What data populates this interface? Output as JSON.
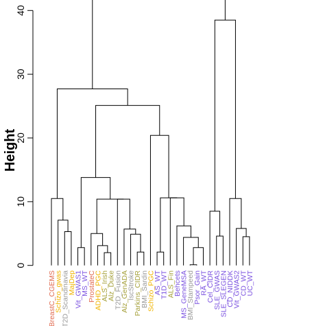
{
  "chart_data": {
    "type": "dendrogram",
    "title": "",
    "ylabel": "Height",
    "xlabel": "",
    "ylim": [
      0,
      43
    ],
    "yticks": [
      0,
      10,
      20,
      30,
      40
    ],
    "ytick_labels": [
      "0",
      "10",
      "20",
      "30",
      "40"
    ],
    "colors": {
      "red": "#e06a4f",
      "orange": "#f0b400",
      "gray": "#9a9a9a",
      "purple": "#7b52e0",
      "olive": "#a6a13c",
      "line": "#000000"
    },
    "leaves": [
      {
        "label": "BreastC_CGEMS",
        "color": "red"
      },
      {
        "label": "Schizo_gwas",
        "color": "orange"
      },
      {
        "label": "T2D_Scandinavia",
        "color": "gray"
      },
      {
        "label": "MajDep",
        "color": "orange"
      },
      {
        "label": "Vit_GWAS1",
        "color": "purple"
      },
      {
        "label": "MS_WT",
        "color": "purple"
      },
      {
        "label": "ProstateC",
        "color": "red"
      },
      {
        "label": "ADHD_PGC",
        "color": "orange"
      },
      {
        "label": "ALS_Irish",
        "color": "olive"
      },
      {
        "label": "Alz_Duke",
        "color": "olive"
      },
      {
        "label": "T2D_Fusion",
        "color": "gray"
      },
      {
        "label": "Alz_GenADA",
        "color": "olive"
      },
      {
        "label": "IscStroke",
        "color": "gray"
      },
      {
        "label": "Parkins_CIDR",
        "color": "olive"
      },
      {
        "label": "BMI_Sardin",
        "color": "gray"
      },
      {
        "label": "Schizo_PGC",
        "color": "orange"
      },
      {
        "label": "AS_WT",
        "color": "purple"
      },
      {
        "label": "T1D_WT",
        "color": "purple"
      },
      {
        "label": "ALS_Fin",
        "color": "olive"
      },
      {
        "label": "Behcets",
        "color": "purple"
      },
      {
        "label": "MS_GeneMSA",
        "color": "purple"
      },
      {
        "label": "BMI_Stampeed",
        "color": "gray"
      },
      {
        "label": "Psor_Gain",
        "color": "purple"
      },
      {
        "label": "RA_WT",
        "color": "purple"
      },
      {
        "label": "Cel_CIDR",
        "color": "purple"
      },
      {
        "label": "SLE_GWAS",
        "color": "purple"
      },
      {
        "label": "SLE_SLEGEN",
        "color": "purple"
      },
      {
        "label": "CD_NIDDK",
        "color": "purple"
      },
      {
        "label": "Vit_GWAS2",
        "color": "purple"
      },
      {
        "label": "CD_WT",
        "color": "purple"
      },
      {
        "label": "UC_WT",
        "color": "purple"
      }
    ],
    "merges": [
      {
        "name": "m1",
        "left": 2,
        "right": 3,
        "height": 5.3
      },
      {
        "name": "m2",
        "left": 1,
        "right": "m1",
        "height": 7.1
      },
      {
        "name": "m3",
        "left": 0,
        "right": "m2",
        "height": 10.5
      },
      {
        "name": "m4",
        "left": 4,
        "right": 5,
        "height": 2.8
      },
      {
        "name": "m5",
        "left": 8,
        "right": 9,
        "height": 2.0
      },
      {
        "name": "m6",
        "left": 7,
        "right": "m5",
        "height": 3.1
      },
      {
        "name": "m7",
        "left": 6,
        "right": "m6",
        "height": 5.0
      },
      {
        "name": "m8",
        "left": 13,
        "right": 14,
        "height": 2.1
      },
      {
        "name": "m9",
        "left": 12,
        "right": "m8",
        "height": 4.9
      },
      {
        "name": "m10",
        "left": 11,
        "right": "m9",
        "height": 5.7
      },
      {
        "name": "m11",
        "left": 10,
        "right": "m10",
        "height": 10.4
      },
      {
        "name": "m12",
        "left": "m7",
        "right": "m11",
        "height": 10.4
      },
      {
        "name": "m13",
        "left": "m4",
        "right": "m12",
        "height": 13.8
      },
      {
        "name": "m14",
        "left": 16,
        "right": 17,
        "height": 2.1
      },
      {
        "name": "m15",
        "left": 21,
        "right": 22,
        "height": 0.1
      },
      {
        "name": "m16",
        "left": "m15",
        "right": 23,
        "height": 2.8
      },
      {
        "name": "m17",
        "left": 20,
        "right": "m16",
        "height": 4.4
      },
      {
        "name": "m18",
        "left": 19,
        "right": "m17",
        "height": 6.2
      },
      {
        "name": "m19",
        "left": 18,
        "right": "m18",
        "height": 10.6
      },
      {
        "name": "m20",
        "left": "m14",
        "right": "m19",
        "height": 10.6
      },
      {
        "name": "m21",
        "left": 15,
        "right": "m20",
        "height": 20.4
      },
      {
        "name": "m22",
        "left": "m13",
        "right": "m21",
        "height": 25.1
      },
      {
        "name": "m23",
        "left": "m3",
        "right": "m22",
        "height": 27.7
      },
      {
        "name": "m24",
        "left": 25,
        "right": 26,
        "height": 4.6
      },
      {
        "name": "m25",
        "left": 24,
        "right": "m24",
        "height": 8.5
      },
      {
        "name": "m26",
        "left": 29,
        "right": 30,
        "height": 4.5
      },
      {
        "name": "m27",
        "left": 28,
        "right": "m26",
        "height": 5.8
      },
      {
        "name": "m28",
        "left": 27,
        "right": "m27",
        "height": 10.5
      },
      {
        "name": "m29",
        "left": "m25",
        "right": "m28",
        "height": 38.5
      },
      {
        "name": "m30",
        "left": "m23",
        "right": "m29",
        "height": 41.7
      }
    ]
  }
}
